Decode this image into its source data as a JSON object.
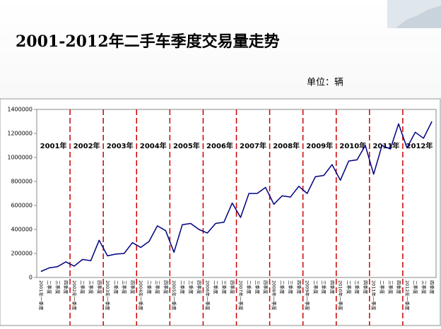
{
  "chart_data": {
    "type": "line",
    "title": "2001-2012年二手车季度交易量走势",
    "unit": "单位：辆",
    "categories": [
      "2001年一季度",
      "二季度",
      "三季度",
      "四季度",
      "2002年一季度",
      "二季度",
      "三季度",
      "四季度",
      "2003年一季度",
      "二季度",
      "三季度",
      "四季度",
      "2004年一季度",
      "二季度",
      "三季度",
      "四季度",
      "2005年一季度",
      "二季度",
      "三季度",
      "四季度",
      "2006年一季度",
      "二季度",
      "三季度",
      "四季度",
      "2007年一季度",
      "二季度",
      "三季度",
      "四季度",
      "2008年一季度",
      "二季度",
      "三季度",
      "四季度",
      "2009年一季度",
      "二季度",
      "三季度",
      "四季度",
      "2010年一季度",
      "二季度",
      "三季度",
      "四季度",
      "2011年一季度",
      "二季度",
      "三季度",
      "四季度",
      "2012年一季度",
      "二季度",
      "三季度",
      "四季度"
    ],
    "year_labels": [
      "2001年",
      "2002年",
      "2003年",
      "2004年",
      "2005年",
      "2006年",
      "2007年",
      "2008年",
      "2009年",
      "2010年",
      "2011年",
      "2012年"
    ],
    "series": [
      {
        "name": "交易量",
        "color": "#000080",
        "values": [
          50000,
          80000,
          90000,
          130000,
          95000,
          150000,
          140000,
          310000,
          180000,
          195000,
          200000,
          290000,
          250000,
          300000,
          430000,
          390000,
          210000,
          440000,
          450000,
          400000,
          370000,
          450000,
          460000,
          620000,
          500000,
          700000,
          700000,
          750000,
          610000,
          680000,
          670000,
          760000,
          700000,
          840000,
          850000,
          940000,
          810000,
          970000,
          980000,
          1100000,
          860000,
          1100000,
          1070000,
          1280000,
          1080000,
          1210000,
          1160000,
          1300000
        ]
      }
    ],
    "ylim": [
      0,
      1400000
    ],
    "yticks": [
      0,
      200000,
      400000,
      600000,
      800000,
      1000000,
      1200000,
      1400000
    ],
    "separator_color": "#cc0000"
  }
}
